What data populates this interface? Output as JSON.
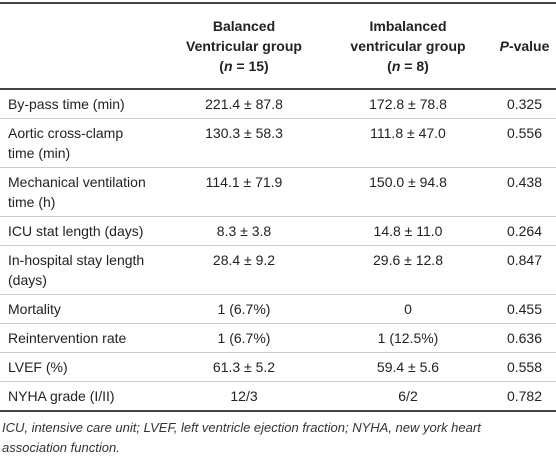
{
  "table": {
    "header": [
      {
        "lines": [
          "Balanced",
          "Ventricular group"
        ],
        "n": {
          "prefix": "(",
          "var": "n",
          "suffix": " = 15)"
        }
      },
      {
        "lines": [
          "Imbalanced",
          "ventricular group"
        ],
        "n": {
          "prefix": "(",
          "var": "n",
          "suffix": " = 8)"
        }
      },
      {
        "var": "P",
        "suffix": "-value"
      }
    ],
    "rows": [
      [
        [
          "By-pass time (min)"
        ],
        "221.4 ± 87.8",
        "172.8 ± 78.8",
        "0.325"
      ],
      [
        [
          "Aortic cross-clamp",
          "time (min)"
        ],
        "130.3 ± 58.3",
        "111.8 ± 47.0",
        "0.556"
      ],
      [
        [
          "Mechanical ventilation",
          "time (h)"
        ],
        "114.1 ± 71.9",
        "150.0 ± 94.8",
        "0.438"
      ],
      [
        [
          "ICU stat length (days)"
        ],
        "8.3 ± 3.8",
        "14.8 ± 11.0",
        "0.264"
      ],
      [
        [
          "In-hospital stay length",
          "(days)"
        ],
        "28.4 ± 9.2",
        "29.6 ± 12.8",
        "0.847"
      ],
      [
        [
          "Mortality"
        ],
        "1 (6.7%)",
        "0",
        "0.455"
      ],
      [
        [
          "Reintervention rate"
        ],
        "1 (6.7%)",
        "1 (12.5%)",
        "0.636"
      ],
      [
        [
          "LVEF (%)"
        ],
        "61.3 ± 5.2",
        "59.4 ± 5.6",
        "0.558"
      ],
      [
        [
          "NYHA grade (I/II)"
        ],
        "12/3",
        "6/2",
        "0.782"
      ]
    ],
    "footnote": [
      "ICU, intensive care unit; LVEF, left ventricle ejection fraction; NYHA, new york heart",
      "association function."
    ]
  }
}
